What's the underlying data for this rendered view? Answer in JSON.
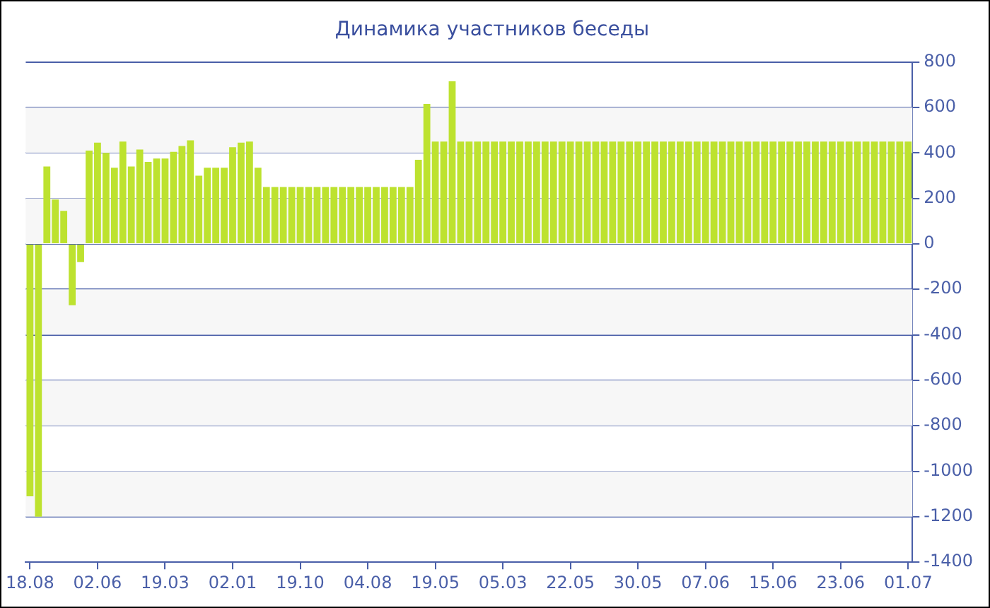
{
  "chart_data": {
    "type": "bar",
    "title": "Динамика участников беседы",
    "color": "#bde22f",
    "categories": [
      "18.08",
      null,
      null,
      null,
      null,
      null,
      null,
      null,
      "02.06",
      null,
      null,
      null,
      null,
      null,
      null,
      null,
      "19.03",
      null,
      null,
      null,
      null,
      null,
      null,
      null,
      "02.01",
      null,
      null,
      null,
      null,
      null,
      null,
      null,
      "19.10",
      null,
      null,
      null,
      null,
      null,
      null,
      null,
      "04.08",
      null,
      null,
      null,
      null,
      null,
      null,
      null,
      "19.05",
      null,
      null,
      null,
      null,
      null,
      null,
      null,
      "05.03",
      null,
      null,
      null,
      null,
      null,
      null,
      null,
      "22.05",
      null,
      null,
      null,
      null,
      null,
      null,
      null,
      "30.05",
      null,
      null,
      null,
      null,
      null,
      null,
      null,
      "07.06",
      null,
      null,
      null,
      null,
      null,
      null,
      null,
      "15.06",
      null,
      null,
      null,
      null,
      null,
      null,
      null,
      "23.06",
      null,
      null,
      null,
      null,
      null,
      null,
      null,
      "01.07"
    ],
    "values": [
      -1110,
      -1200,
      340,
      195,
      145,
      -270,
      -80,
      410,
      445,
      400,
      335,
      450,
      340,
      415,
      360,
      375,
      375,
      405,
      430,
      455,
      300,
      335,
      335,
      335,
      425,
      445,
      450,
      335,
      250,
      250,
      250,
      250,
      250,
      250,
      250,
      250,
      250,
      250,
      250,
      250,
      250,
      250,
      250,
      250,
      250,
      250,
      370,
      615,
      450,
      450,
      715,
      450,
      450,
      450,
      450,
      450,
      450,
      450,
      450,
      450,
      450,
      450,
      450,
      450,
      450,
      450,
      450,
      450,
      450,
      450,
      450,
      450,
      450,
      450,
      450,
      450,
      450,
      450,
      450,
      450,
      450,
      450,
      450,
      450,
      450,
      450,
      450,
      450,
      450,
      450,
      450,
      450,
      450,
      450,
      450,
      450,
      450,
      450,
      450,
      450,
      450,
      450,
      450,
      450,
      450
    ],
    "ylim": [
      -1400,
      800
    ],
    "yticks": [
      -1400,
      -1200,
      -1000,
      -800,
      -600,
      -400,
      -200,
      0,
      200,
      400,
      600,
      800
    ],
    "grid": true
  }
}
